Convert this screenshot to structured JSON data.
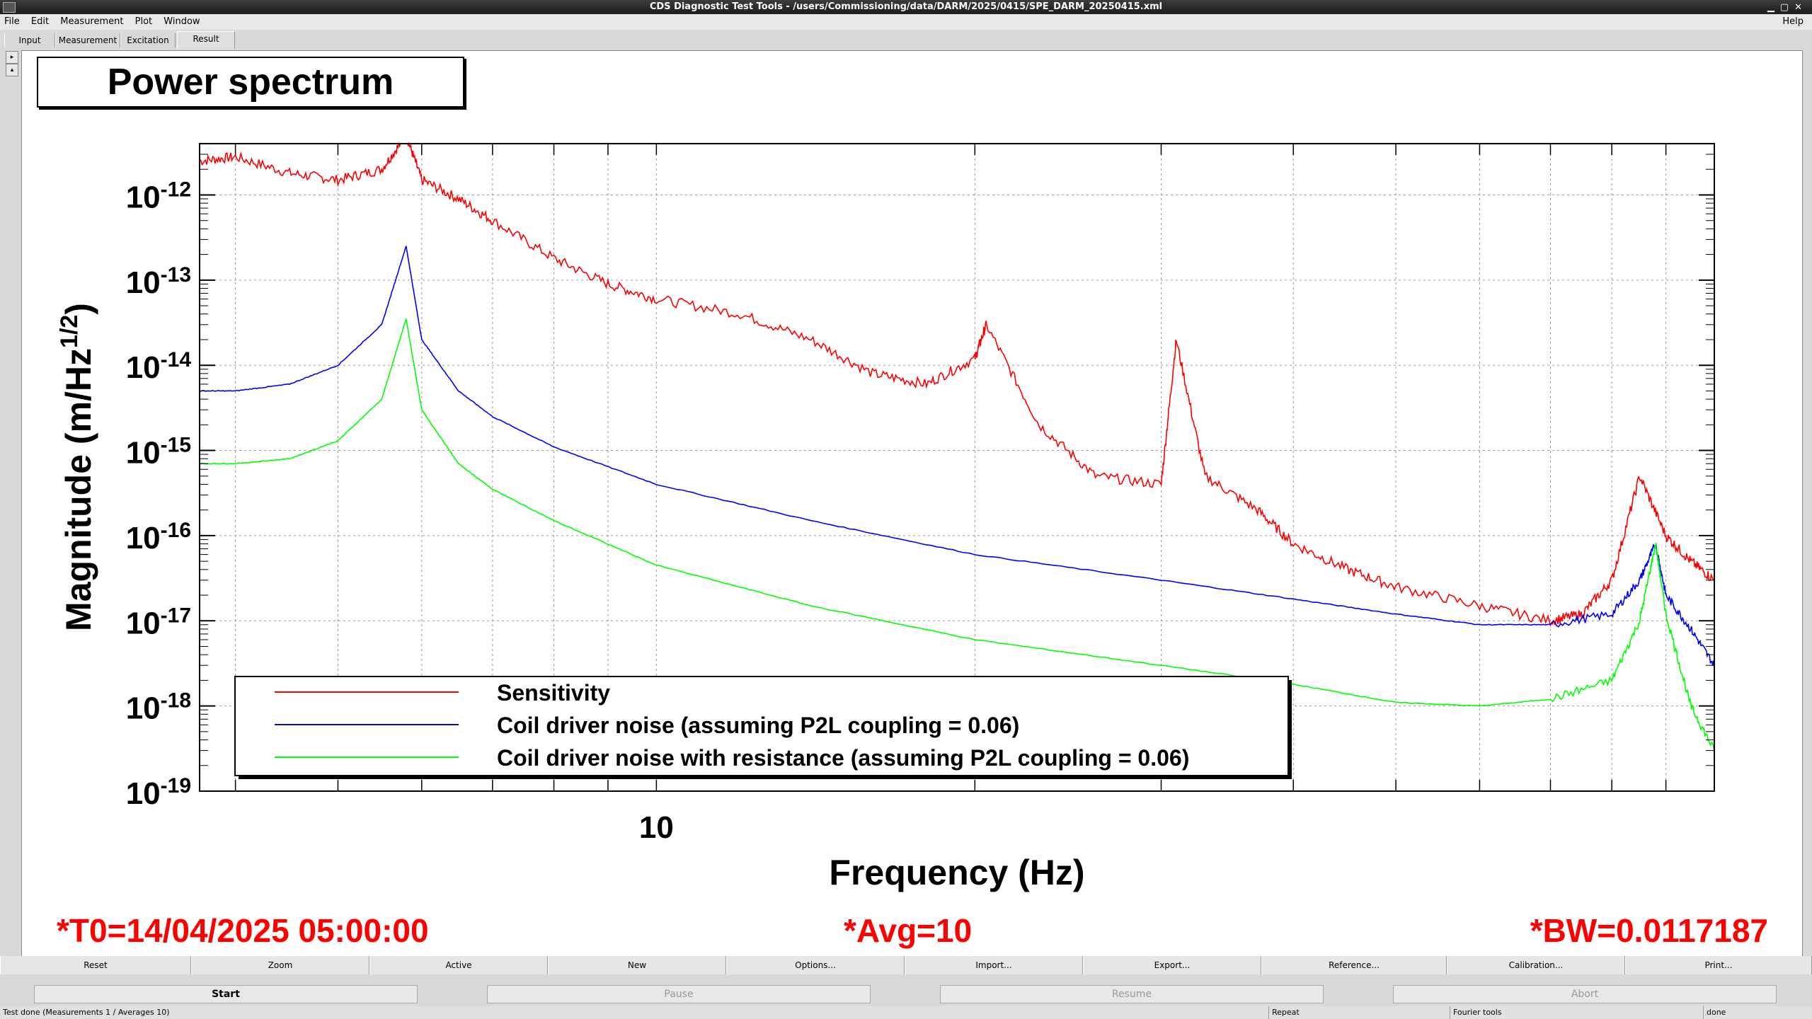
{
  "window": {
    "title": "CDS Diagnostic Test Tools - /users/Commissioning/data/DARM/2025/0415/SPE_DARM_20250415.xml"
  },
  "menu": {
    "file": "File",
    "edit": "Edit",
    "measurement": "Measurement",
    "plot": "Plot",
    "window": "Window",
    "help": "Help"
  },
  "tabs": [
    "Input",
    "Measurement",
    "Excitation",
    "Result"
  ],
  "plot": {
    "title": "Power spectrum",
    "t0": "*T0=14/04/2025 05:00:00",
    "avg": "*Avg=10",
    "bw": "*BW=0.0117187"
  },
  "chart_data": {
    "type": "line",
    "title": "Power spectrum",
    "xlabel": "Frequency (Hz)",
    "ylabel": "Magnitude (m/Hz^1/2)",
    "xscale": "log",
    "yscale": "log",
    "xlim": [
      3.7,
      100
    ],
    "ylim": [
      1e-19,
      4e-12
    ],
    "x_tick_labels": [
      "10"
    ],
    "y_tick_labels": [
      "10^-12",
      "10^-13",
      "10^-14",
      "10^-15",
      "10^-16",
      "10^-17",
      "10^-18",
      "10^-19"
    ],
    "grid": true,
    "legend_position": "bottom-left",
    "series": [
      {
        "name": "Sensitivity",
        "color": "#ff0000",
        "x": [
          3.7,
          4.0,
          4.5,
          5.0,
          5.5,
          5.8,
          6.0,
          6.5,
          7.0,
          8.0,
          9.0,
          10,
          12,
          14,
          16,
          18,
          20,
          20.5,
          23,
          26,
          30,
          31,
          33,
          37,
          40,
          45,
          50,
          60,
          70,
          75,
          80,
          85,
          90,
          95,
          100
        ],
        "y": [
          2.5e-12,
          2.8e-12,
          1.8e-12,
          1.5e-12,
          2e-12,
          5e-12,
          1.5e-12,
          9e-13,
          5e-13,
          1.8e-13,
          9e-14,
          6e-14,
          4e-14,
          2e-14,
          8e-15,
          6e-15,
          1.2e-14,
          3e-14,
          2e-15,
          5e-16,
          4e-16,
          2e-14,
          5e-16,
          2e-16,
          8e-17,
          4e-17,
          2.5e-17,
          1.5e-17,
          1e-17,
          1.2e-17,
          3e-17,
          5e-16,
          1e-16,
          5e-17,
          3e-17
        ]
      },
      {
        "name": "Coil driver noise (assuming P2L coupling = 0.06)",
        "color": "#0000ff",
        "x": [
          3.7,
          4.0,
          4.5,
          5.0,
          5.5,
          5.8,
          6.0,
          6.5,
          7.0,
          8.0,
          10,
          14,
          20,
          30,
          40,
          50,
          60,
          70,
          80,
          85,
          88,
          90,
          95,
          100
        ],
        "y": [
          5e-15,
          5e-15,
          6e-15,
          1e-14,
          3e-14,
          2.5e-13,
          2e-14,
          5e-15,
          2.5e-15,
          1.1e-15,
          4e-16,
          1.5e-16,
          6e-17,
          3e-17,
          1.8e-17,
          1.2e-17,
          9e-18,
          9e-18,
          1.2e-17,
          3e-17,
          8e-17,
          2e-17,
          8e-18,
          3e-18
        ]
      },
      {
        "name": "Coil driver noise with resistance (assuming P2L coupling = 0.06)",
        "color": "#00ff00",
        "x": [
          3.7,
          4.0,
          4.5,
          5.0,
          5.5,
          5.8,
          6.0,
          6.5,
          7.0,
          8.0,
          10,
          14,
          20,
          30,
          40,
          50,
          60,
          70,
          80,
          85,
          88,
          90,
          95,
          100
        ],
        "y": [
          7e-16,
          7e-16,
          8e-16,
          1.3e-15,
          4e-15,
          3.5e-14,
          3e-15,
          7e-16,
          3.5e-16,
          1.5e-16,
          4.5e-17,
          1.5e-17,
          6e-18,
          3e-18,
          1.8e-18,
          1.1e-18,
          1e-18,
          1.2e-18,
          2e-18,
          1e-17,
          8e-17,
          1.2e-17,
          1e-18,
          3e-19
        ]
      }
    ]
  },
  "buttons_row1": [
    "Reset",
    "Zoom",
    "Active",
    "New",
    "Options...",
    "Import...",
    "Export...",
    "Reference...",
    "Calibration...",
    "Print..."
  ],
  "buttons_row2": [
    "Start",
    "Pause",
    "Resume",
    "Abort"
  ],
  "status": [
    "Test done (Measurements 1 / Averages 10)",
    "Repeat",
    "Fourier tools",
    "done"
  ]
}
